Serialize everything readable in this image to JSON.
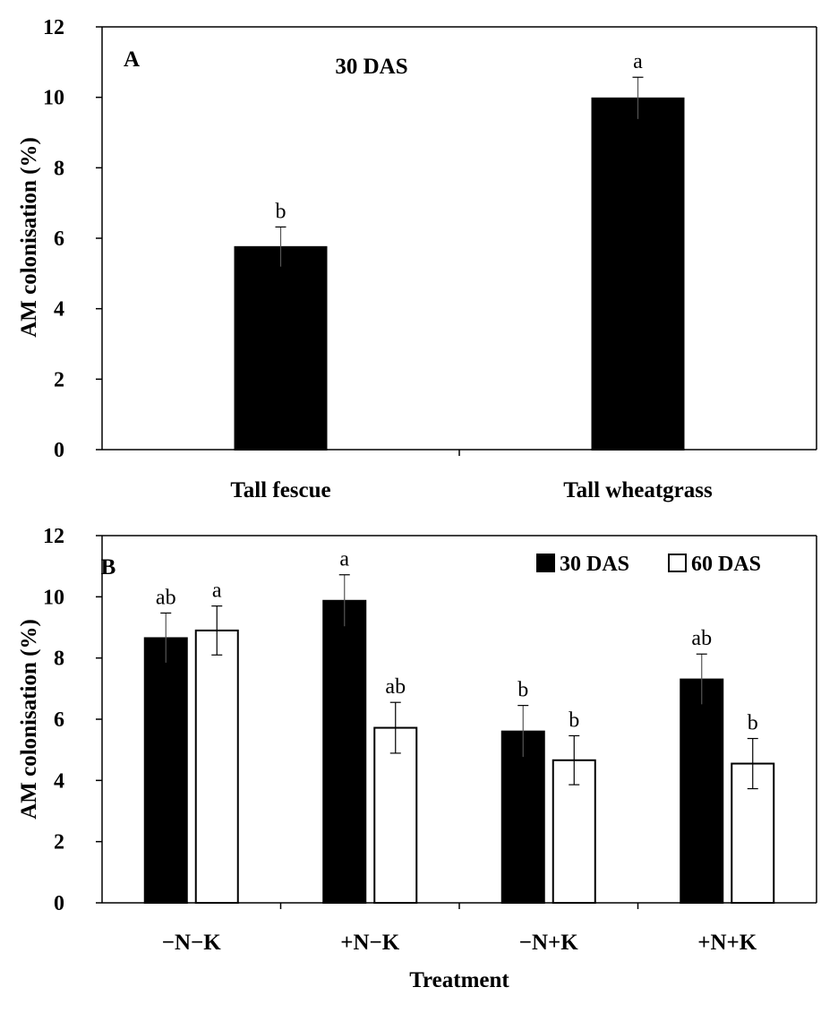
{
  "chart_data": [
    {
      "type": "bar",
      "panel_label": "A",
      "annotation": "30 DAS",
      "categories": [
        "Tall fescue",
        "Tall wheatgrass"
      ],
      "series": [
        {
          "values": [
            5.75,
            9.97
          ],
          "errors": [
            0.57,
            0.6
          ],
          "letters": [
            "b",
            "a"
          ],
          "color": "#000000"
        }
      ],
      "ylabel": "AM colonisation (%)",
      "xlabel": "",
      "ylim": [
        0,
        12
      ],
      "yticks": [
        "0",
        "2",
        "4",
        "6",
        "8",
        "10",
        "12"
      ],
      "grid": false
    },
    {
      "type": "bar",
      "panel_label": "B",
      "categories": [
        "−N−K",
        "+N−K",
        "−N+K",
        "+N+K"
      ],
      "series": [
        {
          "name": "30 DAS",
          "values": [
            8.65,
            9.87,
            5.6,
            7.3
          ],
          "errors": [
            0.82,
            0.85,
            0.85,
            0.83
          ],
          "letters": [
            "ab",
            "a",
            "b",
            "ab"
          ],
          "color": "#000000"
        },
        {
          "name": "60 DAS",
          "values": [
            8.9,
            5.72,
            4.66,
            4.55
          ],
          "errors": [
            0.8,
            0.83,
            0.8,
            0.82
          ],
          "letters": [
            "a",
            "ab",
            "b",
            "b"
          ],
          "color": "#ffffff"
        }
      ],
      "ylabel": "AM colonisation (%)",
      "xlabel": "Treatment",
      "ylim": [
        0,
        12
      ],
      "yticks": [
        "0",
        "2",
        "4",
        "6",
        "8",
        "10",
        "12"
      ],
      "legend": "top-right",
      "grid": false
    }
  ]
}
